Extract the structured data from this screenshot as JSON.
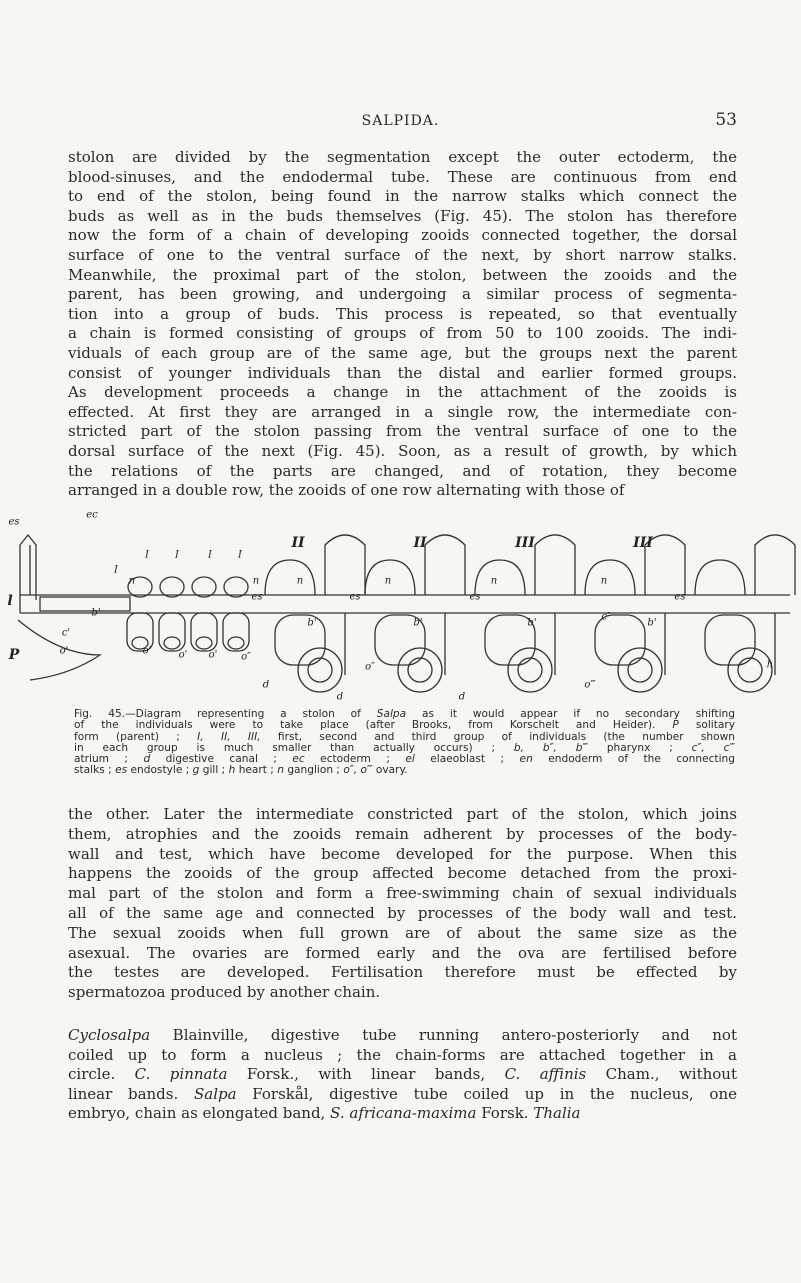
{
  "header": {
    "title": "SALPIDA.",
    "page_number": "53"
  },
  "paragraphs": [
    {
      "lines": [
        "stolon are divided by the segmentation except the outer ectoderm, the",
        "blood-sinuses, and the endodermal tube. These are continuous from end",
        "to end of the stolon, being found in the narrow stalks which connect the",
        "buds as well as in the buds themselves (Fig. 45). The stolon has therefore",
        "now the form of a chain of developing zooids connected together, the dorsal",
        "surface of one to the ventral surface of the next, by short narrow stalks.",
        "Meanwhile, the proximal part of the stolon, between the zooids and the",
        "parent, has been growing, and undergoing a similar process of segmenta-",
        "tion into a group of buds. This process is repeated, so that eventually",
        "a chain is formed consisting of groups of from 50 to 100 zooids. The indi-",
        "viduals of each group are of the same age, but the groups next the parent",
        "consist of younger individuals than the distal and earlier formed groups.",
        "As development proceeds a change in the attachment of the zooids is",
        "effected. At first they are arranged in a single row, the intermediate con-",
        "stricted part of the stolon passing from the ventral surface of one to the",
        "dorsal surface of the next (Fig. 45). Soon, as a result of growth, by which",
        "the relations of the parts are changed, and of rotation, they become",
        "arranged in a double row, the zooids of one row alternating with those of"
      ]
    },
    {
      "lines": [
        "the other. Later the intermediate constricted part of the stolon, which joins",
        "them, atrophies and the zooids remain adherent by processes of the body-",
        "wall and test, which have become developed for the purpose. When this",
        "happens the zooids of the group affected become detached from the proxi-",
        "mal part of the stolon and form a free-swimming chain of sexual individuals",
        "all of the same age and connected by processes of the body wall and test.",
        "The sexual zooids when full grown are of about the same size as the",
        "asexual. The ovaries are formed early and the ova are fertilised before",
        "the testes are developed. Fertilisation therefore must be effected by",
        "spermatozoa produced by another chain."
      ]
    },
    {
      "lines": [
        [
          {
            "i": "Cyclosalpa"
          },
          " Blainville, digestive tube running antero-posteriorly and not"
        ],
        [
          "coiled up to form a nucleus ; the chain-forms are attached together in a"
        ],
        [
          "circle. ",
          {
            "i": "C. pinnata"
          },
          " Forsk., with linear bands, ",
          {
            "i": "C. affinis"
          },
          " Cham., without"
        ],
        [
          "linear bands. ",
          {
            "i": "Salpa"
          },
          " Forskål, digestive tube coiled up in the nucleus, one"
        ],
        [
          "embryo, chain as elongated band, ",
          {
            "i": "S. africana-maxima"
          },
          " Forsk. ",
          {
            "i": "Thalia"
          }
        ]
      ]
    }
  ],
  "figure": {
    "labels": [
      "ec",
      "es",
      "l",
      "P",
      "I",
      "I",
      "I",
      "I",
      "I",
      "n",
      "n",
      "c'",
      "o'",
      "o'",
      "o'",
      "o'",
      "b'",
      "II",
      "II",
      "III",
      "III",
      "n",
      "n",
      "n",
      "n",
      "es",
      "es",
      "es",
      "es",
      "b'",
      "b'",
      "b'",
      "b'",
      "o″",
      "o″",
      "o‴",
      "d",
      "d",
      "d",
      "h",
      "c″"
    ],
    "caption": {
      "lines": [
        [
          "Fig. 45.—Diagram representing a stolon of ",
          {
            "i": "Salpa"
          },
          " as it would appear if no secondary shifting"
        ],
        [
          "of the individuals were to take place (after Brooks, from Korschelt and Heider). ",
          {
            "i": "P"
          },
          " solitary"
        ],
        [
          "form (parent) ; ",
          {
            "i": "I, II, III,"
          },
          " first, second and third group of individuals (the number shown"
        ],
        [
          "in each group is much smaller than actually occurs) ; ",
          {
            "i": "b, b″, b‴"
          },
          " pharynx ; ",
          {
            "i": "c″, c‴"
          }
        ],
        [
          "atrium ; ",
          {
            "i": "d"
          },
          " digestive canal ; ",
          {
            "i": "ec"
          },
          " ectoderm ; ",
          {
            "i": "el"
          },
          " elaeoblast ; ",
          {
            "i": "en"
          },
          " endoderm of the connecting"
        ],
        [
          "stalks ; ",
          {
            "i": "es"
          },
          " endostyle ; ",
          {
            "i": "g"
          },
          " gill ; ",
          {
            "i": "h"
          },
          " heart ; ",
          {
            "i": "n"
          },
          " ganglion ; ",
          {
            "i": "o″, o‴"
          },
          " ovary."
        ]
      ]
    }
  }
}
